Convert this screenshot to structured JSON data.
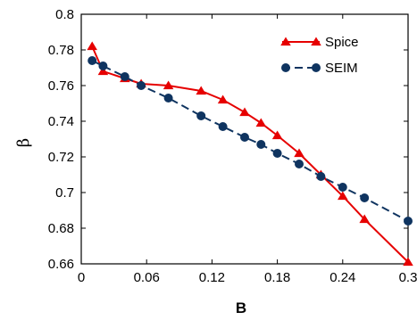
{
  "chart_data": {
    "type": "line",
    "title": "",
    "xlabel": "B",
    "ylabel": "β",
    "xlim": [
      0,
      0.3
    ],
    "ylim": [
      0.66,
      0.8
    ],
    "x_ticks": [
      "0",
      "0.06",
      "0.12",
      "0.18",
      "0.24",
      "0.3"
    ],
    "y_ticks": [
      "0.66",
      "0.68",
      "0.7",
      "0.72",
      "0.74",
      "0.76",
      "0.78",
      "0.8"
    ],
    "legend_position": "top-right",
    "grid": false,
    "series": [
      {
        "name": "Spice",
        "color": "#e60000",
        "marker": "triangle",
        "dashed": false,
        "points": [
          [
            0.01,
            0.782
          ],
          [
            0.02,
            0.768
          ],
          [
            0.04,
            0.764
          ],
          [
            0.055,
            0.761
          ],
          [
            0.08,
            0.76
          ],
          [
            0.11,
            0.757
          ],
          [
            0.13,
            0.752
          ],
          [
            0.15,
            0.745
          ],
          [
            0.165,
            0.739
          ],
          [
            0.18,
            0.732
          ],
          [
            0.2,
            0.722
          ],
          [
            0.22,
            0.71
          ],
          [
            0.24,
            0.698
          ],
          [
            0.26,
            0.685
          ],
          [
            0.3,
            0.661
          ]
        ]
      },
      {
        "name": "SEIM",
        "color": "#0f3460",
        "marker": "circle",
        "dashed": true,
        "points": [
          [
            0.01,
            0.774
          ],
          [
            0.02,
            0.771
          ],
          [
            0.04,
            0.765
          ],
          [
            0.055,
            0.76
          ],
          [
            0.08,
            0.753
          ],
          [
            0.11,
            0.743
          ],
          [
            0.13,
            0.737
          ],
          [
            0.15,
            0.731
          ],
          [
            0.165,
            0.727
          ],
          [
            0.18,
            0.722
          ],
          [
            0.2,
            0.716
          ],
          [
            0.22,
            0.709
          ],
          [
            0.24,
            0.703
          ],
          [
            0.26,
            0.697
          ],
          [
            0.3,
            0.684
          ]
        ]
      }
    ]
  }
}
